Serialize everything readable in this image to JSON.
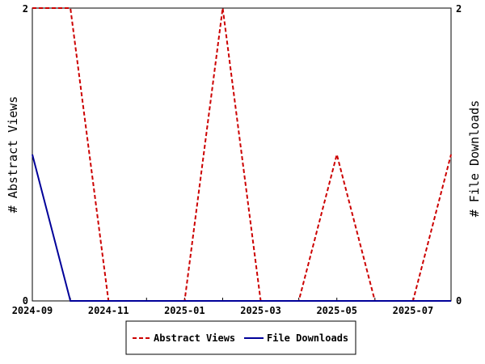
{
  "chart_data": {
    "type": "line",
    "title": "",
    "x_dates": [
      "2024-09",
      "2024-10",
      "2024-11",
      "2024-12",
      "2025-01",
      "2025-02",
      "2025-03",
      "2025-04",
      "2025-05",
      "2025-06",
      "2025-07",
      "2025-08"
    ],
    "x_tick_labels": [
      "2024-09",
      "2024-11",
      "2025-01",
      "2025-03",
      "2025-05",
      "2025-07"
    ],
    "ylabel_left": "# Abstract Views",
    "ylabel_right": "# File Downloads",
    "y_left_range": [
      0,
      2
    ],
    "y_right_range": [
      0,
      2
    ],
    "y_left_ticks": [
      "0",
      "2"
    ],
    "y_right_ticks": [
      "0",
      "2"
    ],
    "grid": false,
    "legend_position": "bottom",
    "series": [
      {
        "name": "Abstract Views",
        "color": "#cc0000",
        "style": "dashed",
        "axis": "left",
        "values": [
          2,
          2,
          0,
          0,
          0,
          2,
          0,
          0,
          1,
          0,
          0,
          1
        ]
      },
      {
        "name": "File Downloads",
        "color": "#000099",
        "style": "solid",
        "axis": "right",
        "values": [
          1,
          0,
          0,
          0,
          0,
          0,
          0,
          0,
          0,
          0,
          0,
          0
        ]
      }
    ]
  }
}
